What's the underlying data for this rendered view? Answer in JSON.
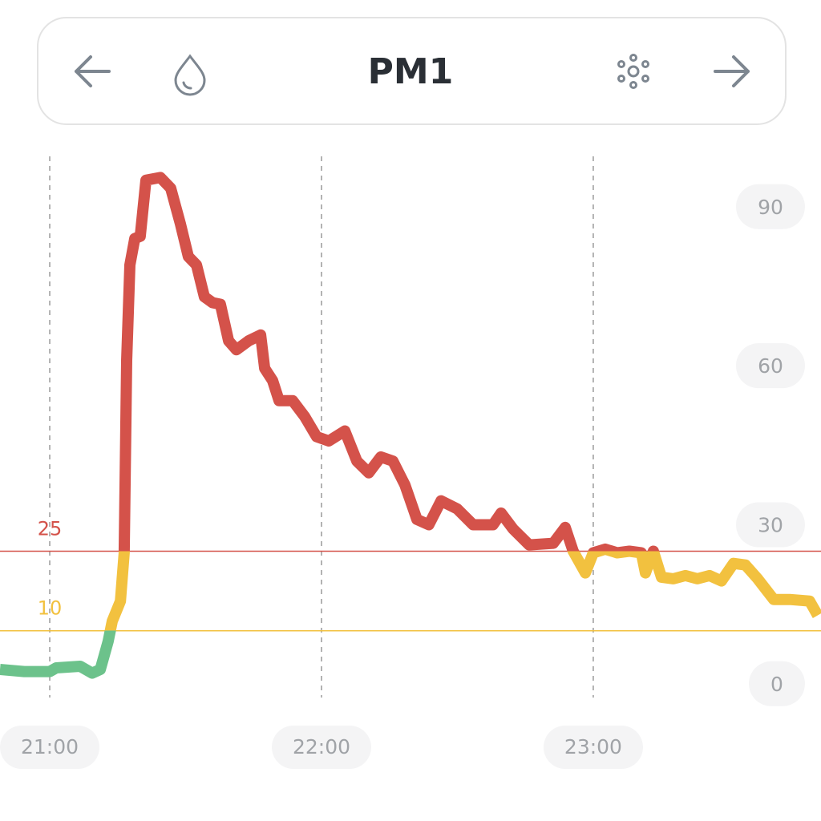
{
  "header": {
    "title": "PM1"
  },
  "chart_data": {
    "type": "line",
    "x": [
      20.817,
      20.906,
      21.0,
      21.024,
      21.112,
      21.156,
      21.186,
      21.215,
      21.23,
      21.26,
      21.274,
      21.283,
      21.295,
      21.313,
      21.333,
      21.354,
      21.407,
      21.445,
      21.481,
      21.51,
      21.54,
      21.569,
      21.599,
      21.628,
      21.658,
      21.687,
      21.732,
      21.776,
      21.791,
      21.82,
      21.844,
      21.894,
      21.938,
      21.982,
      22.027,
      22.086,
      22.13,
      22.174,
      22.218,
      22.263,
      22.307,
      22.351,
      22.395,
      22.44,
      22.499,
      22.558,
      22.631,
      22.661,
      22.705,
      22.764,
      22.853,
      22.897,
      22.926,
      22.971,
      23.0,
      23.044,
      23.088,
      23.133,
      23.177,
      23.192,
      23.221,
      23.251,
      23.295,
      23.339,
      23.383,
      23.428,
      23.472,
      23.516,
      23.56,
      23.605,
      23.664,
      23.723,
      23.796,
      23.826
    ],
    "series": [
      {
        "color": "#6cc28b",
        "values": [
          2.7,
          2.3,
          2.3,
          3.0,
          3.3,
          2.0,
          2.7,
          8.0,
          11.8,
          15.6,
          24.7,
          61.0,
          79.0,
          84.0,
          84.4,
          95.0,
          95.5,
          93.5,
          86.7,
          80.6,
          79.0,
          73.0,
          71.9,
          71.6,
          64.7,
          63.0,
          64.7,
          65.8,
          59.5,
          57.2,
          53.4,
          53.4,
          50.4,
          46.6,
          45.8,
          47.7,
          42.0,
          39.8,
          42.8,
          42.0,
          37.5,
          31.0,
          30.0,
          34.5,
          33.0,
          30.0,
          30.0,
          32.2,
          29.2,
          26.2,
          26.5,
          29.5,
          25.0,
          20.9,
          24.7,
          25.4,
          24.7,
          25.0,
          24.7,
          20.9,
          25.0,
          20.1,
          19.8,
          20.4,
          19.8,
          20.4,
          19.4,
          22.7,
          22.4,
          19.8,
          15.9,
          15.9,
          15.6,
          12.9
        ]
      }
    ],
    "thresholds": [
      {
        "value": 25,
        "color": "#d4524a"
      },
      {
        "value": 10,
        "color": "#f2c13f"
      }
    ],
    "xlim": [
      20.817,
      23.838
    ],
    "xticks": [
      {
        "value": 21,
        "label": "21:00"
      },
      {
        "value": 22,
        "label": "22:00"
      },
      {
        "value": 23,
        "label": "23:00"
      }
    ],
    "ylim": [
      -2.6,
      99.5
    ],
    "yticks": [
      0,
      30,
      60,
      90
    ],
    "grid": true
  }
}
